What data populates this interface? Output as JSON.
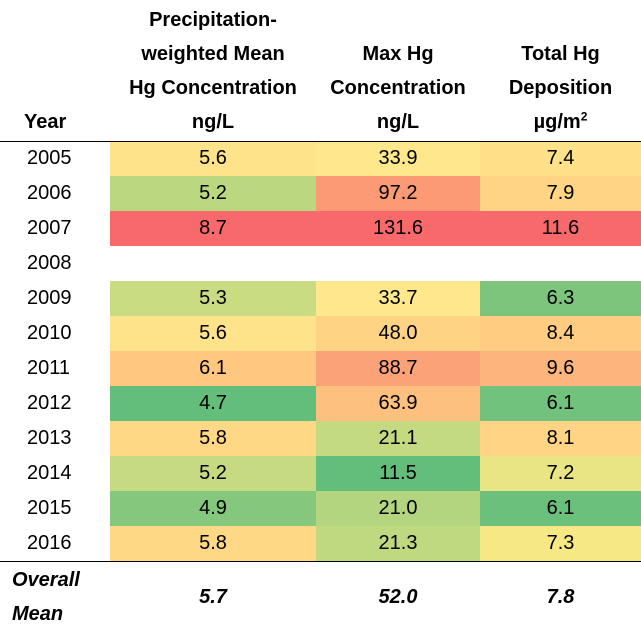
{
  "headers": {
    "year": "Year",
    "mean_conc": [
      "Precipitation-",
      "weighted Mean",
      "Hg Concentration",
      "ng/L"
    ],
    "max_conc": [
      "Max Hg",
      "Concentration",
      "ng/L"
    ],
    "deposition": [
      "Total Hg",
      "Deposition",
      "µg/m",
      "2"
    ]
  },
  "rows": [
    {
      "year": "2005",
      "mean": "5.6",
      "max": "33.9",
      "dep": "7.4",
      "c_mean": "#FFE38A",
      "c_max": "#FFE88B",
      "c_dep": "#FFE18A"
    },
    {
      "year": "2006",
      "mean": "5.2",
      "max": "97.2",
      "dep": "7.9",
      "c_mean": "#BBD880",
      "c_max": "#FC9A76",
      "c_dep": "#FFD585"
    },
    {
      "year": "2007",
      "mean": "8.7",
      "max": "131.6",
      "dep": "11.6",
      "c_mean": "#F8696B",
      "c_max": "#F8696B",
      "c_dep": "#F8696B"
    },
    {
      "year": "2008",
      "mean": "",
      "max": "",
      "dep": "",
      "c_mean": "#FFFFFF",
      "c_max": "#FFFFFF",
      "c_dep": "#FFFFFF"
    },
    {
      "year": "2009",
      "mean": "5.3",
      "max": "33.7",
      "dep": "6.3",
      "c_mean": "#CADC81",
      "c_max": "#FFE88B",
      "c_dep": "#7DC57D"
    },
    {
      "year": "2010",
      "mean": "5.6",
      "max": "48.0",
      "dep": "8.4",
      "c_mean": "#FFE38A",
      "c_max": "#FFD384",
      "c_dep": "#FFCC82"
    },
    {
      "year": "2011",
      "mean": "6.1",
      "max": "88.7",
      "dep": "9.6",
      "c_mean": "#FFC77F",
      "c_max": "#FBA278",
      "c_dep": "#FDB47D"
    },
    {
      "year": "2012",
      "mean": "4.7",
      "max": "63.9",
      "dep": "6.1",
      "c_mean": "#63BE7B",
      "c_max": "#FEC07F",
      "c_dep": "#71C27C"
    },
    {
      "year": "2013",
      "mean": "5.8",
      "max": "21.1",
      "dep": "8.1",
      "c_mean": "#FFD886",
      "c_max": "#C3DA81",
      "c_dep": "#FFD484"
    },
    {
      "year": "2014",
      "mean": "5.2",
      "max": "11.5",
      "dep": "7.2",
      "c_mean": "#C6DB81",
      "c_max": "#63BE7B",
      "c_dep": "#EAE584"
    },
    {
      "year": "2015",
      "mean": "4.9",
      "max": "21.0",
      "dep": "6.1",
      "c_mean": "#84C77D",
      "c_max": "#B3D57F",
      "c_dep": "#6BC07C"
    },
    {
      "year": "2016",
      "mean": "5.8",
      "max": "21.3",
      "dep": "7.3",
      "c_mean": "#FFD886",
      "c_max": "#BFD981",
      "c_dep": "#F7E886"
    }
  ],
  "overall": {
    "label": [
      "Overall",
      "Mean"
    ],
    "mean": "5.7",
    "max": "52.0",
    "dep": "7.8"
  }
}
